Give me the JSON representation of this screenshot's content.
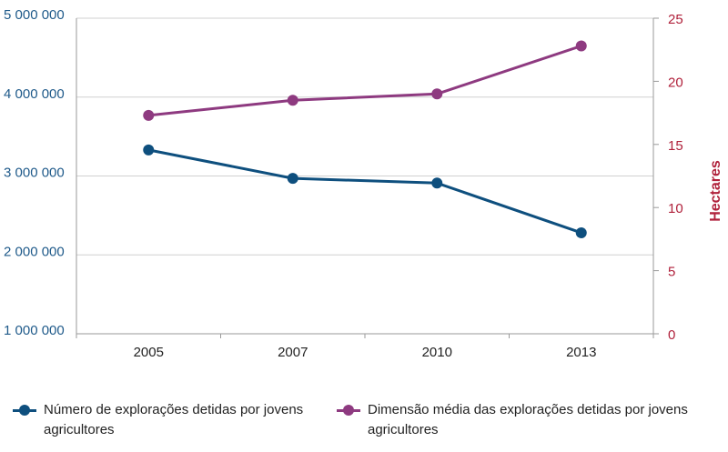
{
  "chart_data": {
    "type": "line",
    "categories": [
      "2005",
      "2007",
      "2010",
      "2013"
    ],
    "series": [
      {
        "name": "Número de explorações detidas por jovens agricultores",
        "axis": "left",
        "color": "#0e4f7e",
        "values": [
          3330000,
          2970000,
          2910000,
          2280000
        ]
      },
      {
        "name": "Dimensão média das explorações detidas por jovens agricultores",
        "axis": "right",
        "color": "#8e3a80",
        "values": [
          17.3,
          18.5,
          19.0,
          22.8
        ]
      }
    ],
    "y_left": {
      "ylim": [
        1000000,
        5000000
      ],
      "ticks": [
        1000000,
        2000000,
        3000000,
        4000000,
        5000000
      ],
      "tick_labels": [
        "1 000 000",
        "2 000 000",
        "3 000 000",
        "4 000 000",
        "5 000 000"
      ],
      "color": "#1f5a8a"
    },
    "y_right": {
      "ylim": [
        0,
        25
      ],
      "ticks": [
        0,
        5,
        10,
        15,
        20,
        25
      ],
      "tick_labels": [
        "0",
        "5",
        "10",
        "15",
        "20",
        "25"
      ],
      "label": "Hectares",
      "color": "#b0213b"
    },
    "grid": "horizontal",
    "legend": "bottom"
  }
}
